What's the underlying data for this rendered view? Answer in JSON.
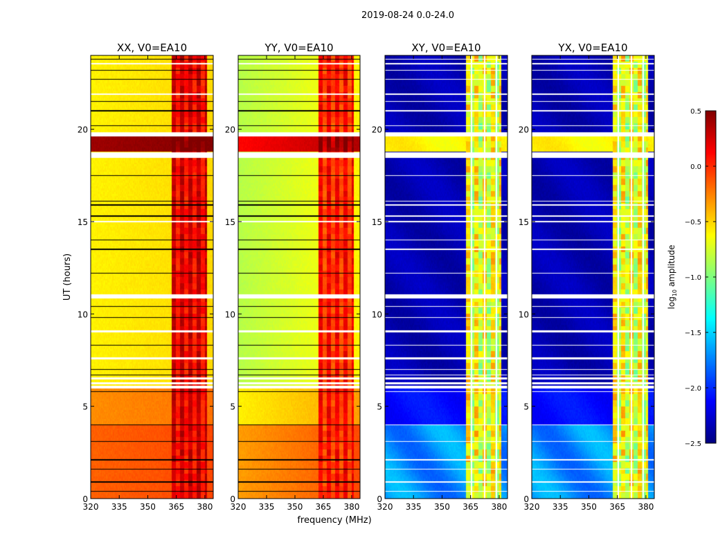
{
  "chart_data": {
    "type": "heatmap",
    "title": "2019-08-24 0.0-24.0",
    "xlabel": "frequency (MHz)",
    "ylabel": "UT (hours)",
    "xlim": [
      320,
      384.4
    ],
    "ylim": [
      0,
      24
    ],
    "xticks": [
      "320",
      "335",
      "350",
      "365",
      "380"
    ],
    "xtick_values": [
      320,
      335,
      350,
      365,
      380
    ],
    "yticks": [
      "0",
      "5",
      "10",
      "15",
      "20"
    ],
    "ytick_values": [
      0,
      5,
      10,
      15,
      20
    ],
    "colorbar": {
      "label": "log10 amplitude",
      "label_main": "log",
      "label_sub": "10",
      "label_rest": " amplitude",
      "colormap": "jet",
      "range": [
        -2.5,
        0.5
      ],
      "ticks": [
        "0.5",
        "0.0",
        "−0.5",
        "−1.0",
        "−1.5",
        "−2.0",
        "−2.5"
      ],
      "tick_values": [
        0.5,
        0.0,
        -0.5,
        -1.0,
        -1.5,
        -2.0,
        -2.5
      ]
    },
    "rfi_band_mhz": [
      362.5,
      381
    ],
    "flagged_rows_hours": [
      [
        5.95,
        6.1
      ],
      [
        6.2,
        6.3
      ],
      [
        6.45,
        6.55
      ],
      [
        7.55,
        7.65
      ],
      [
        9.0,
        9.1
      ],
      [
        10.85,
        11.05
      ],
      [
        14.95,
        15.05
      ],
      [
        18.45,
        18.75
      ],
      [
        19.6,
        19.85
      ],
      [
        21.85,
        21.95
      ],
      [
        23.5,
        23.6
      ]
    ],
    "low_rows_hours": [
      0.4,
      0.9,
      1.6,
      2.1,
      3.1,
      4.0,
      5.8,
      6.7,
      7.0,
      8.3,
      9.8,
      10.4,
      12.2,
      13.5,
      14.0,
      15.3,
      15.9,
      16.1,
      17.5,
      20.2,
      21.0,
      21.5,
      22.7,
      23.2,
      23.8
    ],
    "panels": [
      {
        "title": "XX, V0=EA10",
        "kind": "auto",
        "levels": {
          "early": -0.12,
          "mid": -0.25,
          "late": -0.55,
          "hot": 0.45,
          "rfi": 0.1
        }
      },
      {
        "title": "YY, V0=EA10",
        "kind": "auto",
        "levels": {
          "early": -0.3,
          "mid": -0.55,
          "late": -0.8,
          "hot": 0.15,
          "rfi": -0.05
        }
      },
      {
        "title": "XY, V0=EA10",
        "kind": "cross",
        "levels": {
          "early": -1.7,
          "mid": -2.1,
          "late": -2.35,
          "hot": -0.6,
          "rfi": -0.9
        }
      },
      {
        "title": "YX, V0=EA10",
        "kind": "cross",
        "levels": {
          "early": -1.7,
          "mid": -2.1,
          "late": -2.35,
          "hot": -0.6,
          "rfi": -0.9
        }
      }
    ]
  }
}
